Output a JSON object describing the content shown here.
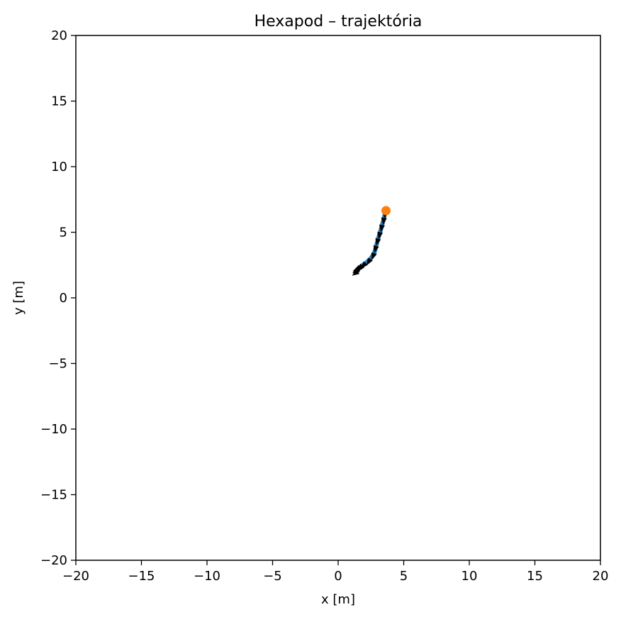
{
  "chart_data": {
    "type": "line",
    "title": "Hexapod – trajektória",
    "xlabel": "x [m]",
    "ylabel": "y [m]",
    "xlim": [
      -20,
      20
    ],
    "ylim": [
      -20,
      20
    ],
    "xticks": [
      -20,
      -15,
      -10,
      -5,
      0,
      5,
      10,
      15,
      20
    ],
    "yticks": [
      -20,
      -15,
      -10,
      -5,
      0,
      5,
      10,
      15,
      20
    ],
    "xtick_labels": [
      "−20",
      "−15",
      "−10",
      "−5",
      "0",
      "5",
      "10",
      "15",
      "20"
    ],
    "ytick_labels": [
      "−20",
      "−15",
      "−10",
      "−5",
      "0",
      "5",
      "10",
      "15",
      "20"
    ],
    "grid": false,
    "series": [
      {
        "kind": "path",
        "color": "#1f77b4",
        "x": [
          1.5,
          1.8,
          2.1,
          2.45,
          2.75,
          2.9,
          3.05,
          3.2,
          3.35,
          3.5,
          3.6
        ],
        "y": [
          2.2,
          2.45,
          2.65,
          2.95,
          3.4,
          3.95,
          4.5,
          5.0,
          5.55,
          6.1,
          6.6
        ]
      },
      {
        "kind": "heading-arrows",
        "color": "#000000",
        "x": [
          1.5,
          1.55,
          1.6,
          1.7,
          1.85,
          2.1,
          2.45,
          2.75,
          2.9,
          3.05,
          3.2,
          3.35,
          3.5,
          3.6
        ],
        "y": [
          2.0,
          2.15,
          2.25,
          2.35,
          2.45,
          2.65,
          2.95,
          3.4,
          3.95,
          4.5,
          5.0,
          5.55,
          6.1,
          6.6
        ],
        "heading_deg": [
          215,
          210,
          205,
          220,
          225,
          230,
          240,
          250,
          255,
          255,
          258,
          260,
          262,
          265
        ]
      },
      {
        "kind": "marker",
        "color": "#ff7f0e",
        "x": [
          3.65
        ],
        "y": [
          6.65
        ]
      }
    ]
  }
}
